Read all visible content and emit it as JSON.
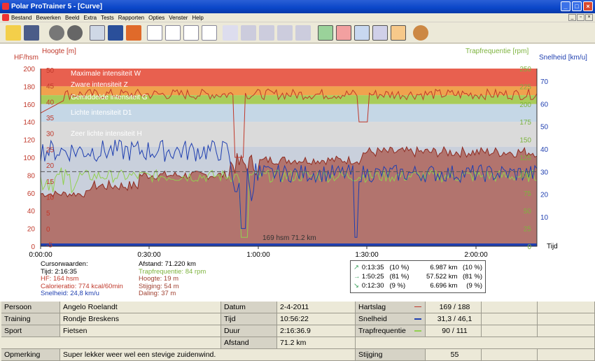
{
  "window": {
    "title": "Polar ProTrainer 5 - [Curve]"
  },
  "menu": [
    "Bestand",
    "Bewerken",
    "Beeld",
    "Extra",
    "Tests",
    "Rapporten",
    "Opties",
    "Venster",
    "Help"
  ],
  "chart": {
    "left_axis_title": "HF/hsm",
    "left2_axis_title": "Hoogte [m]",
    "right2_axis_title": "Trapfrequentie [rpm]",
    "right_axis_title": "Snelheid [km/u]",
    "hr_ticks": [
      "200",
      "180",
      "160",
      "140",
      "120",
      "100",
      "80",
      "60",
      "40",
      "20",
      "0"
    ],
    "alt_ticks": [
      "50",
      "45",
      "40",
      "35",
      "30",
      "25",
      "20",
      "15",
      "10",
      "5",
      "0",
      "-5"
    ],
    "cad_ticks": [
      "250",
      "225",
      "200",
      "175",
      "150",
      "125",
      "100",
      "75",
      "50",
      "25",
      "0"
    ],
    "spd_ticks": [
      "70",
      "60",
      "50",
      "40",
      "30",
      "20",
      "10"
    ],
    "time_ticks": [
      "0:00:00",
      "0:30:00",
      "1:00:00",
      "1:30:00",
      "2:00:00"
    ],
    "x_unit": "Tijd",
    "zones": [
      {
        "name": "Maximale intensiteit   W",
        "from": 180,
        "to": 200,
        "color": "#e8604f"
      },
      {
        "name": "Zware intensiteit   Z",
        "from": 170,
        "to": 180,
        "color": "#f0a24e"
      },
      {
        "name": "Gemiddelde intensiteit   G",
        "from": 160,
        "to": 170,
        "color": "#a9cc5a"
      },
      {
        "name": "Lichte intensiteit   D1",
        "from": 140,
        "to": 160,
        "color": "#c5d7e6"
      },
      {
        "name": "Zeer lichte intensiteit   H",
        "from": 112,
        "to": 140,
        "color": "#dadada"
      }
    ],
    "bottom_label": "169 hsm 71.2 km"
  },
  "chart_data": {
    "type": "line",
    "x_label": "Tijd",
    "x_range": [
      "0:00:00",
      "2:16:35"
    ],
    "series": [
      {
        "name": "HF",
        "color": "#c0392b"
      },
      {
        "name": "Snelheid",
        "color": "#1f3fb0"
      },
      {
        "name": "Trapfrequentie",
        "color": "#92d050"
      },
      {
        "name": "Hoogte",
        "color": "#a04030"
      }
    ],
    "ylim_hr": [
      0,
      200
    ]
  },
  "cursor": {
    "title": "Cursorwaarden:",
    "tijd": "Tijd: 2:16:35",
    "hf": "HF: 164 hsm",
    "calorie": "Calorieratio: 774 kcal/60min",
    "snelheid": "Snelheid: 24,8 km/u",
    "afstand": "Afstand: 71.220 km",
    "trap": "Trapfrequentie: 84 rpm",
    "hoogte": "Hoogte: 19 m",
    "stijging": "Stijging: 54 m",
    "daling": "Daling: 37 m"
  },
  "summary": [
    {
      "arrow": "↗",
      "t": "0:13:35",
      "p1": "(10 %)",
      "d": "6.987 km",
      "p2": "(10 %)",
      "color": "#3a9e5a"
    },
    {
      "arrow": "→",
      "t": "1:50:25",
      "p1": "(81 %)",
      "d": "57.522 km",
      "p2": "(81 %)",
      "color": "#3a9e5a"
    },
    {
      "arrow": "↘",
      "t": "0:12:30",
      "p1": "(9 %)",
      "d": "6.696 km",
      "p2": "(9 %)",
      "color": "#3a9e5a"
    }
  ],
  "table": {
    "persoon": "Persoon",
    "persoon_v": "Angelo Roelandt",
    "training": "Training",
    "training_v": "Rondje Breskens",
    "sport": "Sport",
    "sport_v": "Fietsen",
    "opmerking": "Opmerking",
    "opmerking_v": "Super lekker weer wel een stevige zuidenwind.",
    "datum": "Datum",
    "datum_v": "2-4-2011",
    "tijd": "Tijd",
    "tijd_v": "10:56:22",
    "duur": "Duur",
    "duur_v": "2:16:36.9",
    "afstand": "Afstand",
    "afstand_v": "71.2 km",
    "hartslag": "Hartslag",
    "hartslag_v": "169 / 188",
    "snelheid": "Snelheid",
    "snelheid_v": "31,3 / 46,1",
    "trap": "Trapfrequentie",
    "trap_v": "90 / 111",
    "stijging": "Stijging",
    "stijging_v": "55"
  }
}
